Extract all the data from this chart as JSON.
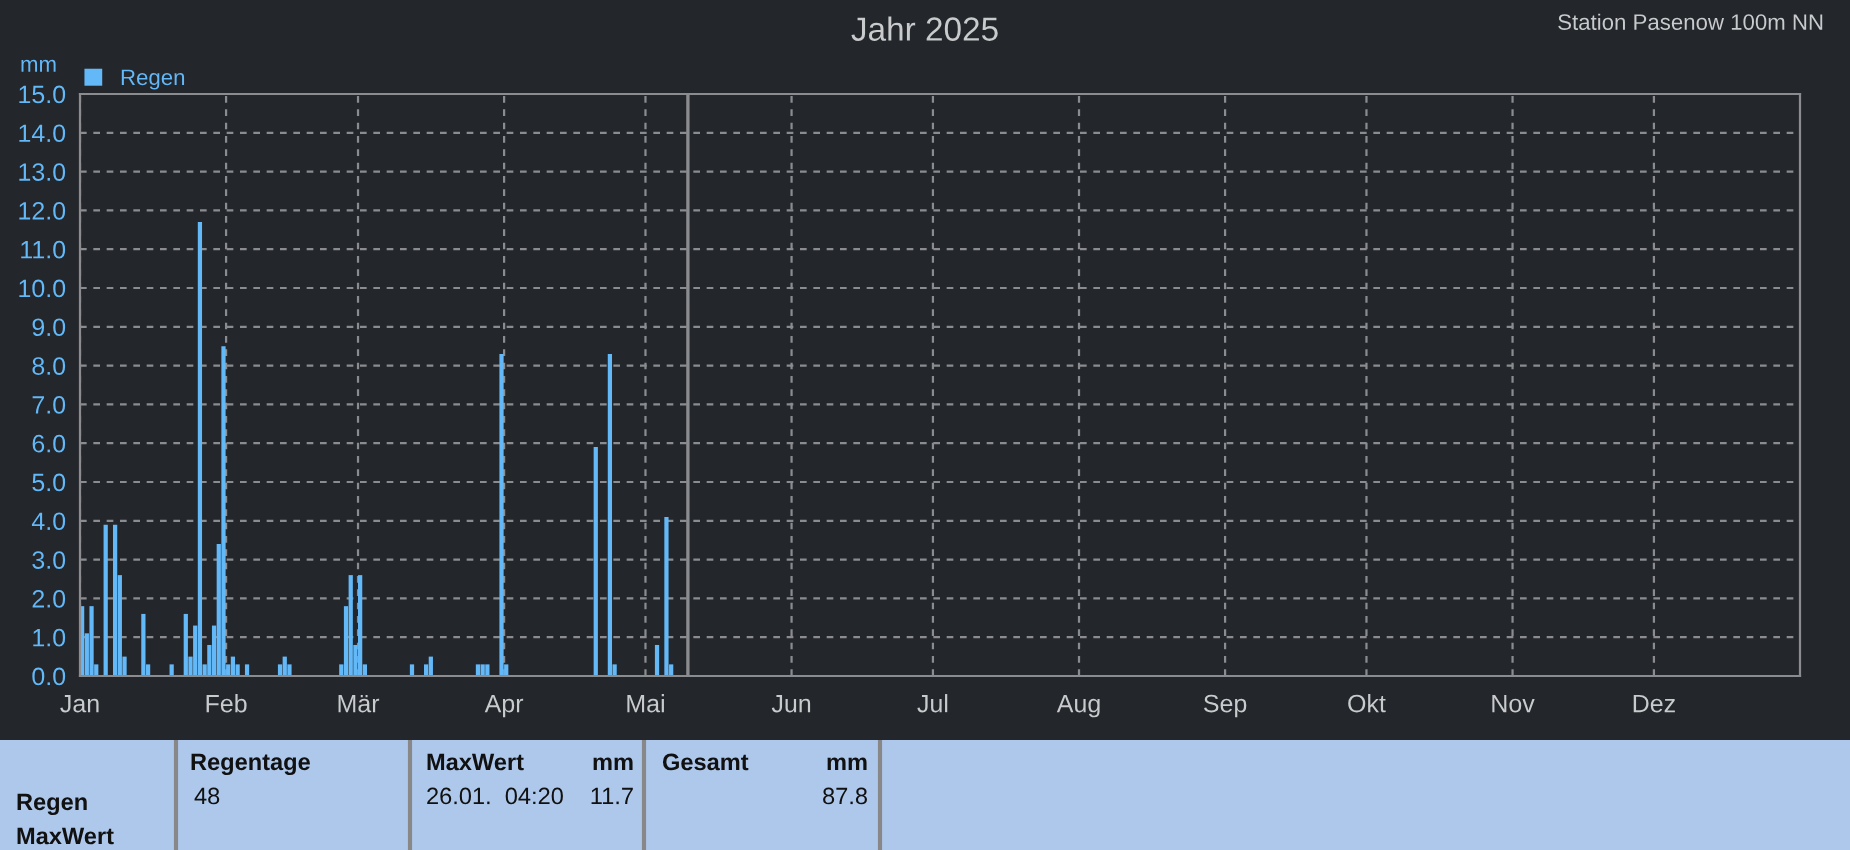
{
  "chart_data": {
    "type": "bar",
    "title": "Jahr 2025",
    "subtitle": "Station Pasenow 100m NN",
    "ylabel": "mm",
    "x": [
      "2025-01-01",
      "2025-01-02",
      "2025-01-03",
      "2025-01-04",
      "2025-01-06",
      "2025-01-08",
      "2025-01-09",
      "2025-01-10",
      "2025-01-14",
      "2025-01-15",
      "2025-01-20",
      "2025-01-23",
      "2025-01-24",
      "2025-01-25",
      "2025-01-26",
      "2025-01-27",
      "2025-01-28",
      "2025-01-29",
      "2025-01-30",
      "2025-01-31",
      "2025-02-01",
      "2025-02-02",
      "2025-02-03",
      "2025-02-05",
      "2025-02-12",
      "2025-02-13",
      "2025-02-14",
      "2025-02-25",
      "2025-02-26",
      "2025-02-27",
      "2025-02-28",
      "2025-03-01",
      "2025-03-02",
      "2025-03-12",
      "2025-03-15",
      "2025-03-16",
      "2025-03-26",
      "2025-03-27",
      "2025-03-28",
      "2025-03-31",
      "2025-04-01",
      "2025-04-20",
      "2025-04-23",
      "2025-04-24",
      "2025-05-03",
      "2025-05-05",
      "2025-05-06"
    ],
    "series": [
      {
        "name": "Regen",
        "color": "#63b8f8",
        "values": [
          1.8,
          1.1,
          1.8,
          0.3,
          3.9,
          3.9,
          2.6,
          0.5,
          1.6,
          0.3,
          0.3,
          1.6,
          0.5,
          1.3,
          11.7,
          0.3,
          0.8,
          1.3,
          3.4,
          8.5,
          0.3,
          0.5,
          0.3,
          0.3,
          0.3,
          0.5,
          0.3,
          0.3,
          1.8,
          2.6,
          0.8,
          2.6,
          0.3,
          0.3,
          0.3,
          0.5,
          0.3,
          0.3,
          0.3,
          8.3,
          0.3,
          5.9,
          8.3,
          0.3,
          0.8,
          4.1,
          0.3
        ]
      }
    ],
    "xlim": [
      "2025-01-01",
      "2026-01-01"
    ],
    "xticks": [
      {
        "value": "2025-01-01",
        "label": "Jan"
      },
      {
        "value": "2025-02-01",
        "label": "Feb"
      },
      {
        "value": "2025-03-01",
        "label": "Mär"
      },
      {
        "value": "2025-04-01",
        "label": "Apr"
      },
      {
        "value": "2025-05-01",
        "label": "Mai"
      },
      {
        "value": "2025-06-01",
        "label": "Jun"
      },
      {
        "value": "2025-07-01",
        "label": "Jul"
      },
      {
        "value": "2025-08-01",
        "label": "Aug"
      },
      {
        "value": "2025-09-01",
        "label": "Sep"
      },
      {
        "value": "2025-10-01",
        "label": "Okt"
      },
      {
        "value": "2025-11-01",
        "label": "Nov"
      },
      {
        "value": "2025-12-01",
        "label": "Dez"
      }
    ],
    "ylim": [
      0,
      15
    ],
    "yticks": [
      {
        "value": 0,
        "label": "0.0"
      },
      {
        "value": 1,
        "label": "1.0"
      },
      {
        "value": 2,
        "label": "2.0"
      },
      {
        "value": 3,
        "label": "3.0"
      },
      {
        "value": 4,
        "label": "4.0"
      },
      {
        "value": 5,
        "label": "5.0"
      },
      {
        "value": 6,
        "label": "6.0"
      },
      {
        "value": 7,
        "label": "7.0"
      },
      {
        "value": 8,
        "label": "8.0"
      },
      {
        "value": 9,
        "label": "9.0"
      },
      {
        "value": 10,
        "label": "10.0"
      },
      {
        "value": 11,
        "label": "11.0"
      },
      {
        "value": 12,
        "label": "12.0"
      },
      {
        "value": 13,
        "label": "13.0"
      },
      {
        "value": 14,
        "label": "14.0"
      },
      {
        "value": 15,
        "label": "15.0"
      }
    ],
    "ref_lines": [
      {
        "axis": "x",
        "value": "2025-05-10",
        "color": "#8a8c8f"
      }
    ],
    "grid": true,
    "legend": "top left",
    "annotations": [
      "Regen",
      "MaxWert",
      "Regentage",
      "48",
      "MaxWert",
      "mm",
      "26.01.  04:20",
      "11.7",
      "Gesamt",
      "mm",
      "87.8"
    ]
  }
}
